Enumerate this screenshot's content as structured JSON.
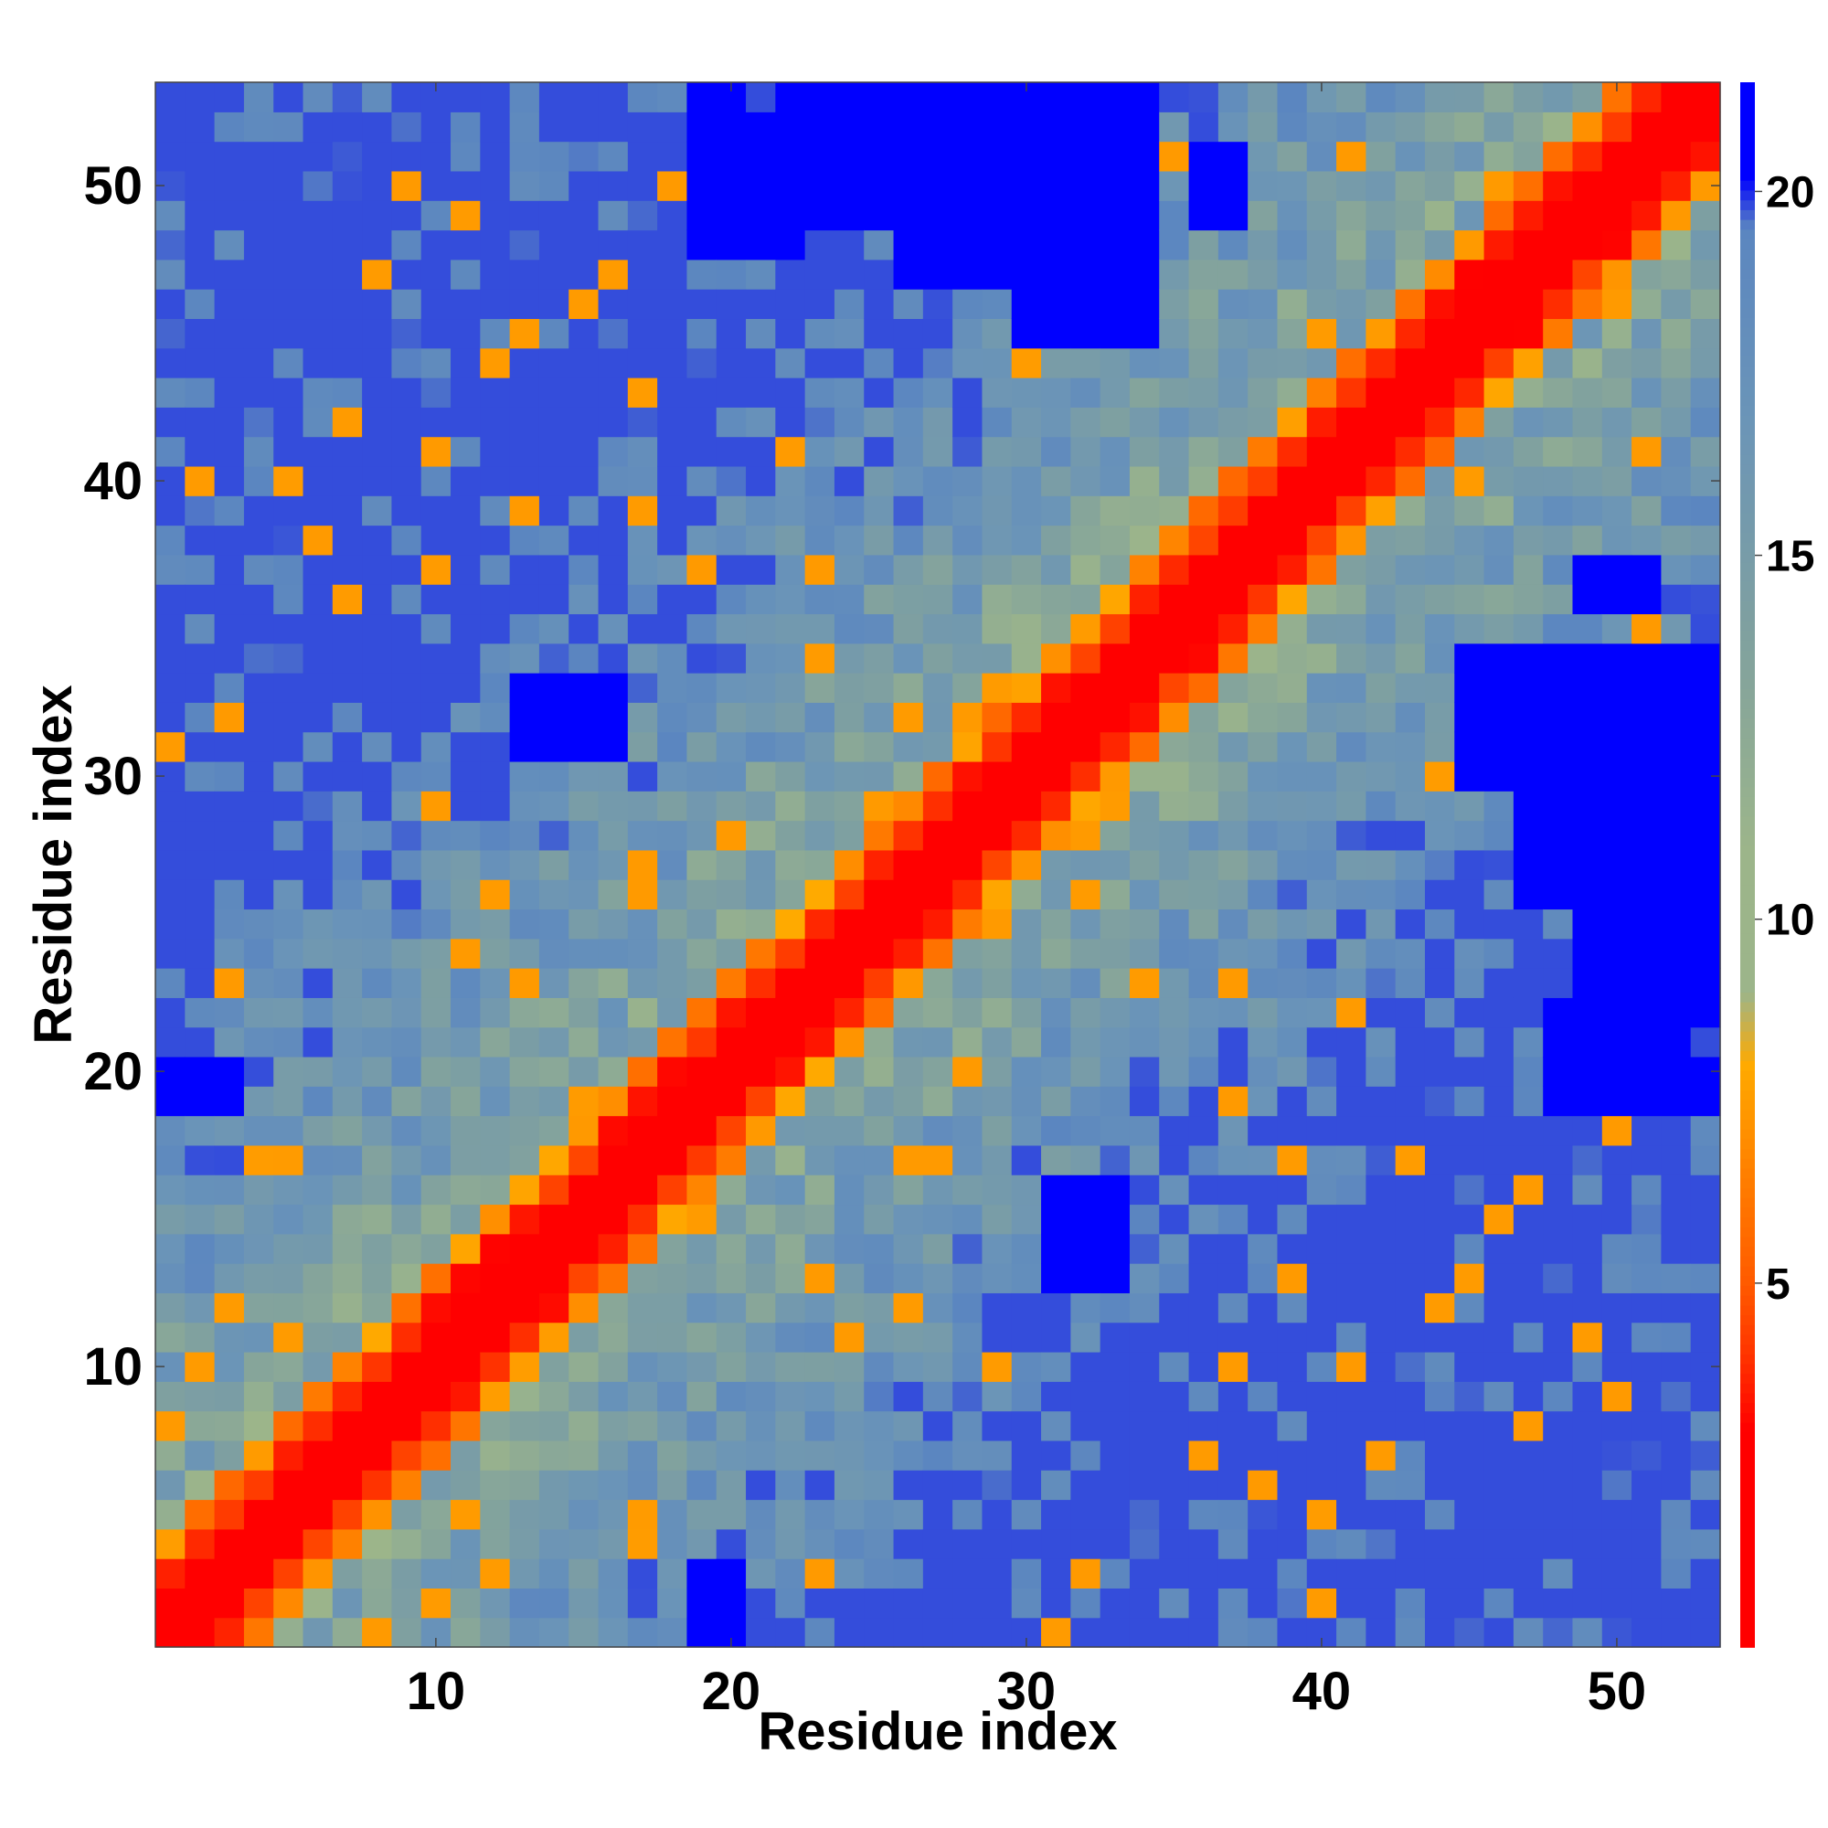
{
  "chart_data": {
    "type": "heatmap",
    "title": "",
    "xlabel": "Residue index",
    "ylabel": "Residue index",
    "n_residues": 53,
    "x_range": [
      0.5,
      53.5
    ],
    "y_range": [
      0.5,
      53.5
    ],
    "x_ticks": [
      10,
      20,
      30,
      40,
      50
    ],
    "y_ticks": [
      10,
      20,
      30,
      40,
      50
    ],
    "colorbar": {
      "ticks": [
        5,
        10,
        15,
        20
      ],
      "range": [
        0,
        21.5
      ],
      "note": "distance scale; red = close contact, blue = far (>=20)",
      "stops": [
        {
          "value": 0,
          "color": "#ff0000"
        },
        {
          "value": 3,
          "color": "#ff0000"
        },
        {
          "value": 4,
          "color": "#ff3300"
        },
        {
          "value": 5,
          "color": "#ff5a00"
        },
        {
          "value": 6.5,
          "color": "#ff7f00"
        },
        {
          "value": 8,
          "color": "#ffaa00"
        },
        {
          "value": 9,
          "color": "#9cb58a"
        },
        {
          "value": 11,
          "color": "#9cb58a"
        },
        {
          "value": 14,
          "color": "#7fa0a0"
        },
        {
          "value": 17,
          "color": "#6a94b8"
        },
        {
          "value": 19.5,
          "color": "#5b86c0"
        },
        {
          "value": 20.2,
          "color": "#0000ff"
        },
        {
          "value": 21.5,
          "color": "#0000ff"
        }
      ]
    },
    "far_blocks": [
      {
        "i": [
          49,
          53
        ],
        "j": [
          24,
          33
        ]
      },
      {
        "i": [
          48,
          52
        ],
        "j": [
          19,
          22
        ]
      },
      {
        "i": [
          49,
          53
        ],
        "j": [
          26,
          33
        ]
      },
      {
        "i": [
          26,
          30
        ],
        "j": [
          47,
          53
        ]
      },
      {
        "i": [
          30,
          34
        ],
        "j": [
          45,
          53
        ]
      },
      {
        "i": [
          19,
          20
        ],
        "j": [
          49,
          53
        ]
      },
      {
        "i": [
          22,
          24
        ],
        "j": [
          49,
          53
        ]
      },
      {
        "i": [
          1,
          3
        ],
        "j": [
          19,
          20
        ]
      },
      {
        "i": [
          49,
          51
        ],
        "j": [
          36,
          37
        ]
      },
      {
        "i": [
          13,
          16
        ],
        "j": [
          31,
          33
        ]
      }
    ]
  }
}
